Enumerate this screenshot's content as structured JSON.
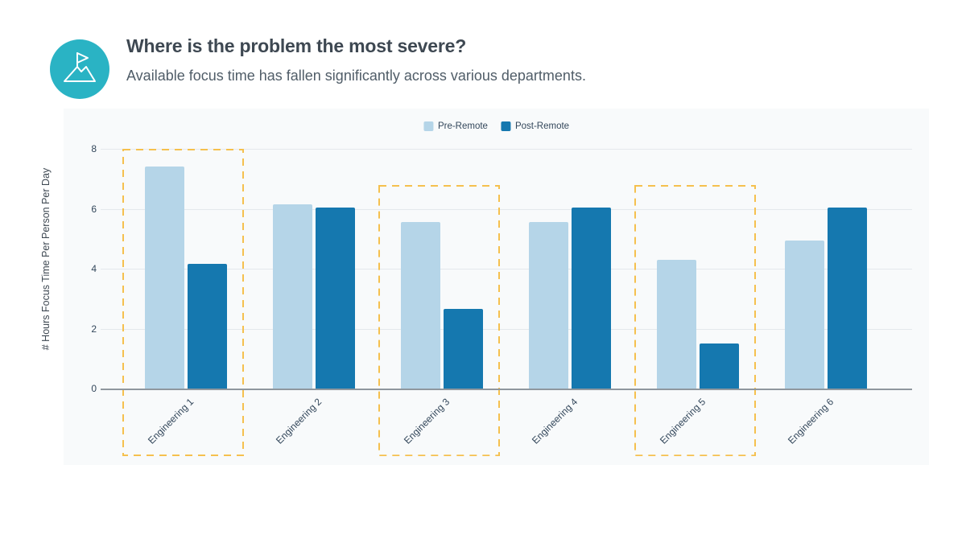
{
  "header": {
    "title": "Where is the problem the most severe?",
    "subtitle": "Available focus time has fallen significantly across various departments.",
    "icon": "mountain-flag-icon"
  },
  "chart_data": {
    "type": "bar",
    "categories": [
      "Engineering 1",
      "Engineering 2",
      "Engineering 3",
      "Engineering 4",
      "Engineering 5",
      "Engineering 6"
    ],
    "series": [
      {
        "name": "Pre-Remote",
        "color": "#b5d5e8",
        "values": [
          7.4,
          6.15,
          5.55,
          5.55,
          4.3,
          4.95
        ]
      },
      {
        "name": "Post-Remote",
        "color": "#1578af",
        "values": [
          4.15,
          6.05,
          2.65,
          6.05,
          1.5,
          6.05
        ]
      }
    ],
    "ylabel": "# Hours Focus Time Per Person Per Day",
    "xlabel": "",
    "ylim": [
      0,
      8
    ],
    "yticks": [
      0,
      2,
      4,
      6,
      8
    ],
    "grid": true,
    "legend_position": "top-center",
    "highlights": [
      {
        "category_index": 0,
        "top_value": 8.0
      },
      {
        "category_index": 2,
        "top_value": 6.8
      },
      {
        "category_index": 4,
        "top_value": 6.8
      }
    ]
  },
  "colors": {
    "accent_teal": "#2ab3c4",
    "title_text": "#3e4852",
    "subtitle_text": "#505d68",
    "axis_text": "#33475b",
    "panel_bg": "#f8fafb",
    "gridline": "#e4e8ec",
    "axis_line": "#8f979e",
    "highlight_dash": "#f5c04e",
    "pre_remote_bar": "#b5d5e8",
    "post_remote_bar": "#1578af"
  }
}
